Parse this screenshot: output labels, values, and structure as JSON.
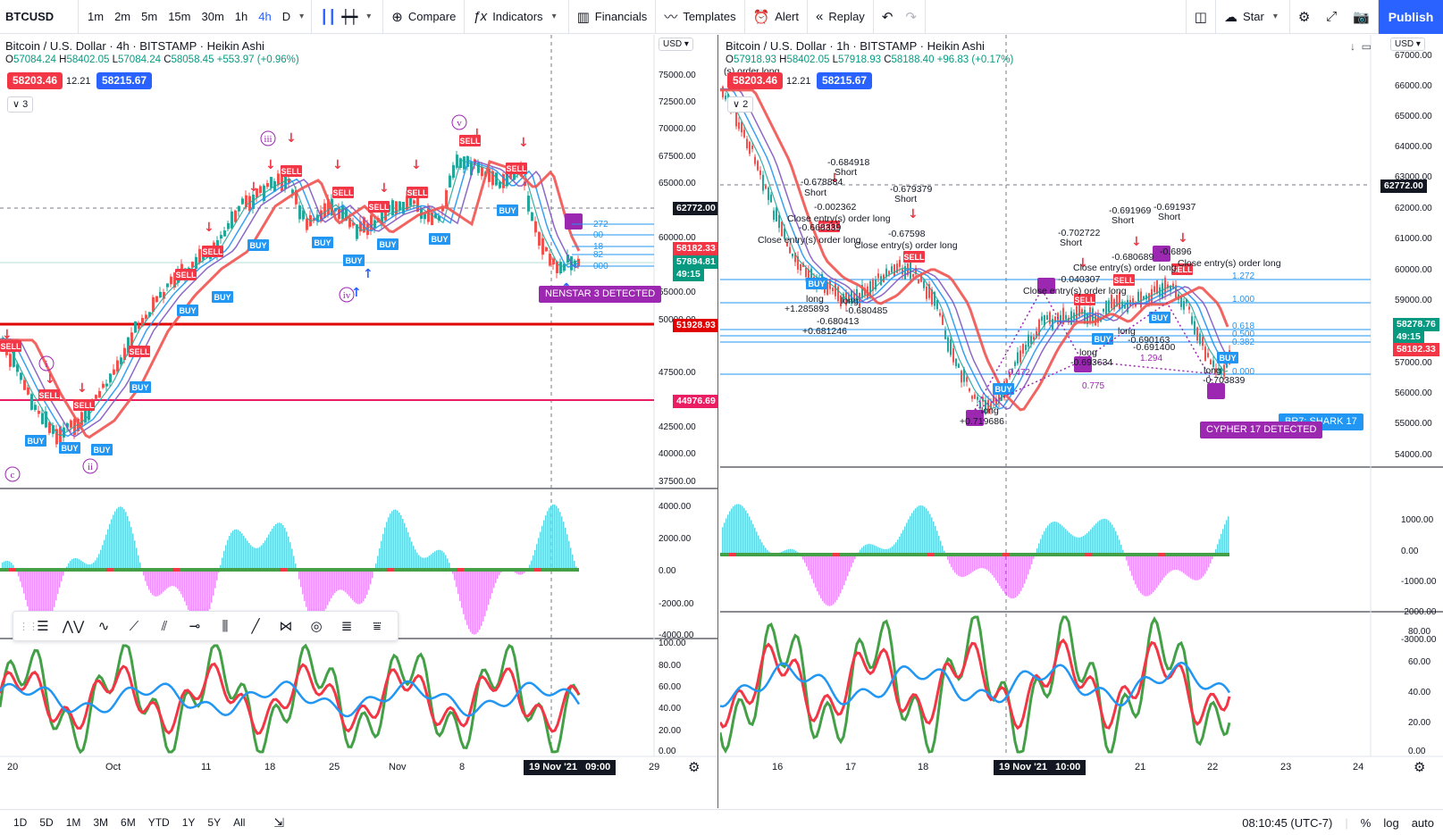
{
  "toolbar": {
    "symbol": "BTCUSD",
    "intervals": [
      "1m",
      "2m",
      "5m",
      "15m",
      "30m",
      "1h",
      "4h",
      "D"
    ],
    "active_interval": "4h",
    "compare_label": "Compare",
    "indicators_label": "Indicators",
    "financials_label": "Financials",
    "templates_label": "Templates",
    "alert_label": "Alert",
    "replay_label": "Replay",
    "star_label": "Star",
    "publish_label": "Publish"
  },
  "left_chart": {
    "title": "Bitcoin / U.S. Dollar · 4h · BITSTAMP · Heikin Ashi",
    "ohlc": {
      "o_label": "O",
      "o": "57084.24",
      "h_label": "H",
      "h": "58402.05",
      "l_label": "L",
      "l": "57084.24",
      "c_label": "C",
      "c": "58058.45",
      "change": "+553.97 (+0.96%)"
    },
    "sell_price": "58203.46",
    "spread": "12.21",
    "buy_price": "58215.67",
    "indicator_count": "3",
    "currency": "USD",
    "price_axis": [
      "75000.00",
      "72500.00",
      "70000.00",
      "67500.00",
      "65000.00",
      "60000.00",
      "55000.00",
      "50000.00",
      "47500.00",
      "42500.00",
      "40000.00",
      "37500.00"
    ],
    "axis_tags": {
      "crosshair": "62772.00",
      "last_red": "58182.33",
      "last_green": "57894.81",
      "countdown": "49:15",
      "line_red": "51928.93",
      "line_pink": "44976.69"
    },
    "osc_axis": [
      "4000.00",
      "2000.00",
      "0.00",
      "-2000.00",
      "-4000.00"
    ],
    "rsi_axis": [
      "100.00",
      "80.00",
      "60.00",
      "40.00",
      "20.00",
      "0.00"
    ],
    "time_axis": [
      "20",
      "Oct",
      "11",
      "18",
      "25",
      "Nov",
      "8",
      "29"
    ],
    "crosshair_time": "19 Nov '21",
    "crosshair_clock": "09:00",
    "detected_label": "NENSTAR 3 DETECTED",
    "waves": [
      "i",
      "ii",
      "iii",
      "iv",
      "v",
      "c"
    ],
    "fib_labels": [
      "272",
      "00",
      "18",
      "82",
      "000"
    ],
    "signals_buy": "BUY",
    "signals_sell": "SELL"
  },
  "right_chart": {
    "title": "Bitcoin / U.S. Dollar · 1h · BITSTAMP · Heikin Ashi",
    "ohlc": {
      "o_label": "O",
      "o": "57918.93",
      "h_label": "H",
      "h": "58402.05",
      "l_label": "L",
      "l": "57918.93",
      "c_label": "C",
      "c": "58188.40",
      "change": "+96.83 (+0.17%)"
    },
    "sell_price": "58203.46",
    "spread": "12.21",
    "buy_price": "58215.67",
    "indicator_count": "2",
    "currency": "USD",
    "price_axis": [
      "67000.00",
      "66000.00",
      "65000.00",
      "64000.00",
      "63000.00",
      "62000.00",
      "61000.00",
      "60000.00",
      "59000.00",
      "57000.00",
      "56000.00",
      "55000.00",
      "54000.00"
    ],
    "axis_tags": {
      "crosshair": "62772.00",
      "last_green": "58278.76",
      "countdown": "49:15",
      "last_red": "58182.33"
    },
    "osc_axis": [
      "1000.00",
      "0.00",
      "-1000.00",
      "-2000.00",
      "-3000.00"
    ],
    "rsi_axis": [
      "80.00",
      "60.00",
      "40.00",
      "20.00",
      "0.00"
    ],
    "time_axis": [
      "16",
      "17",
      "18",
      "20",
      "21",
      "22",
      "23",
      "24"
    ],
    "crosshair_time": "19 Nov '21",
    "crosshair_clock": "10:00",
    "fib_labels": [
      "1.272",
      "1.000",
      "0.618",
      "0.500",
      "0.382",
      "0.000"
    ],
    "harmonic_labels": [
      "0.472",
      "0.775",
      "1.294"
    ],
    "detected_cypher": "CYPHER 17 DETECTED",
    "detected_shark": "BR7: SHARK 17",
    "annotations": [
      {
        "text": "-0.684918"
      },
      {
        "text": "Short"
      },
      {
        "text": "-0.678884"
      },
      {
        "text": "Short"
      },
      {
        "text": "-0.002362"
      },
      {
        "text": "Close entry(s) order long"
      },
      {
        "text": "-0.668339"
      },
      {
        "text": "Close entry(s) order long"
      },
      {
        "text": "-0.679379"
      },
      {
        "text": "Short"
      },
      {
        "text": "-0.67598"
      },
      {
        "text": "Close entry(s) order long"
      },
      {
        "text": "long"
      },
      {
        "text": "+1.285893"
      },
      {
        "text": "long"
      },
      {
        "text": "-0.680485"
      },
      {
        "text": "-0.680413"
      },
      {
        "text": "+0.681246"
      },
      {
        "text": "long"
      },
      {
        "text": "+0.719686"
      },
      {
        "text": "-0.702722"
      },
      {
        "text": "Short"
      },
      {
        "text": "-0.691969"
      },
      {
        "text": "Short"
      },
      {
        "text": "-0.691937"
      },
      {
        "text": "Short"
      },
      {
        "text": "-0.040307"
      },
      {
        "text": "Close entry(s) order long"
      },
      {
        "text": "-0.680689"
      },
      {
        "text": "-0.6896"
      },
      {
        "text": "Close entry(s) order long"
      },
      {
        "text": "Close entry(s) order long"
      },
      {
        "text": "long"
      },
      {
        "text": "-0.693634"
      },
      {
        "text": "long"
      },
      {
        "text": "-0.690163"
      },
      {
        "text": "-0.691400"
      },
      {
        "text": "long"
      },
      {
        "text": "-0.703839"
      },
      {
        "text": "(s) order long"
      }
    ]
  },
  "bottombar": {
    "ranges": [
      "1D",
      "5D",
      "1M",
      "3M",
      "6M",
      "YTD",
      "1Y",
      "5Y",
      "All"
    ],
    "time": "08:10:45 (UTC-7)",
    "percent_label": "%",
    "log_label": "log",
    "auto_label": "auto"
  },
  "colors": {
    "accent": "#2962ff",
    "sell": "#f23645",
    "buy": "#2196f3",
    "bull_candle": "#26a69a",
    "bear_candle": "#ef5350",
    "ema_red": "#ef5350",
    "ema_blue": "#5c6bc0",
    "detected": "#9c27b0"
  },
  "icons": {
    "compare": "plus-circle-icon",
    "indicators": "fx-icon",
    "financials": "bar-chart-icon",
    "templates": "templates-icon",
    "alert": "alarm-clock-icon",
    "replay": "rewind-icon",
    "undo": "undo-icon",
    "redo": "redo-icon",
    "layout": "layout-icon",
    "cloud": "cloud-icon",
    "settings": "gear-icon",
    "fullscreen": "fullscreen-icon",
    "snapshot": "camera-icon"
  }
}
